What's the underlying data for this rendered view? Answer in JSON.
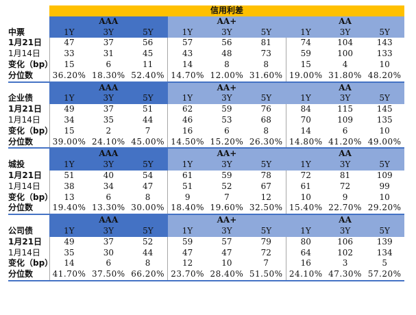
{
  "title": "信用利差",
  "groups": [
    "AAA",
    "AA+",
    "AA"
  ],
  "tenors": [
    "1Y",
    "3Y",
    "5Y"
  ],
  "row_labels": {
    "date_current": "1月21日",
    "date_prev": "1月14日",
    "change": "变化（bp）",
    "percentile": "分位数"
  },
  "colors": {
    "title_bg": "#ffc000",
    "aaa_bg": "#4472c4",
    "aaplus_bg": "#8ea9db",
    "aa_bg": "#8ea9db"
  },
  "sections": [
    {
      "name": "中票",
      "current": [
        "47",
        "37",
        "56",
        "57",
        "56",
        "81",
        "74",
        "104",
        "143"
      ],
      "prev": [
        "33",
        "31",
        "45",
        "43",
        "48",
        "73",
        "59",
        "100",
        "133"
      ],
      "change": [
        "15",
        "6",
        "11",
        "14",
        "8",
        "8",
        "15",
        "4",
        "10"
      ],
      "percentile": [
        "36.20%",
        "18.30%",
        "52.40%",
        "14.70%",
        "12.00%",
        "31.60%",
        "19.00%",
        "31.80%",
        "48.20%"
      ]
    },
    {
      "name": "企业债",
      "current": [
        "49",
        "37",
        "51",
        "62",
        "59",
        "76",
        "84",
        "115",
        "145"
      ],
      "prev": [
        "34",
        "35",
        "44",
        "46",
        "53",
        "68",
        "70",
        "109",
        "135"
      ],
      "change": [
        "15",
        "2",
        "7",
        "16",
        "6",
        "8",
        "14",
        "6",
        "10"
      ],
      "percentile": [
        "39.00%",
        "24.10%",
        "45.00%",
        "14.50%",
        "15.20%",
        "26.30%",
        "14.80%",
        "41.20%",
        "49.00%"
      ]
    },
    {
      "name": "城投",
      "current": [
        "51",
        "40",
        "54",
        "61",
        "59",
        "78",
        "72",
        "81",
        "109"
      ],
      "prev": [
        "38",
        "34",
        "47",
        "51",
        "52",
        "67",
        "61",
        "72",
        "99"
      ],
      "change": [
        "13",
        "6",
        "8",
        "9",
        "7",
        "12",
        "10",
        "9",
        "10"
      ],
      "percentile": [
        "19.40%",
        "13.30%",
        "30.00%",
        "18.40%",
        "19.60%",
        "32.50%",
        "15.40%",
        "22.70%",
        "29.20%"
      ]
    },
    {
      "name": "公司债",
      "current": [
        "49",
        "37",
        "52",
        "59",
        "57",
        "79",
        "80",
        "106",
        "139"
      ],
      "prev": [
        "35",
        "30",
        "44",
        "47",
        "47",
        "72",
        "64",
        "102",
        "134"
      ],
      "change": [
        "14",
        "6",
        "8",
        "12",
        "10",
        "7",
        "16",
        "3",
        "5"
      ],
      "percentile": [
        "41.70%",
        "37.50%",
        "66.20%",
        "23.70%",
        "28.40%",
        "51.50%",
        "24.10%",
        "47.30%",
        "57.20%"
      ]
    }
  ]
}
